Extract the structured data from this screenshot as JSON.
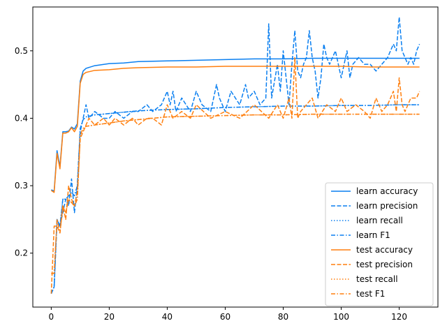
{
  "chart_data": {
    "type": "line",
    "title": "",
    "xlabel": "",
    "ylabel": "",
    "xlim": [
      -6.35,
      133.35
    ],
    "ylim": [
      0.12,
      0.565
    ],
    "xticks": [
      0,
      20,
      40,
      60,
      80,
      100,
      120
    ],
    "yticks": [
      0.2,
      0.3,
      0.4,
      0.5
    ],
    "grid": false,
    "legend_position": "lower-right",
    "colors": {
      "learn": "#1f77b4",
      "test": "#ff7f0e"
    },
    "series": [
      {
        "name": "learn accuracy",
        "color": "#0a7ff0",
        "dash": "solid",
        "x": [
          0,
          1,
          2,
          3,
          4,
          5,
          6,
          7,
          8,
          9,
          10,
          11,
          12,
          15,
          20,
          25,
          30,
          40,
          50,
          60,
          70,
          80,
          90,
          100,
          110,
          120,
          127
        ],
        "y": [
          0.294,
          0.292,
          0.352,
          0.328,
          0.38,
          0.38,
          0.381,
          0.387,
          0.384,
          0.392,
          0.455,
          0.47,
          0.474,
          0.478,
          0.481,
          0.482,
          0.484,
          0.485,
          0.486,
          0.487,
          0.488,
          0.488,
          0.489,
          0.489,
          0.489,
          0.489,
          0.489
        ]
      },
      {
        "name": "learn precision",
        "color": "#0a7ff0",
        "dash": "dashed",
        "x": [
          0,
          1,
          2,
          3,
          4,
          5,
          6,
          7,
          8,
          9,
          10,
          11,
          12,
          13,
          15,
          18,
          20,
          22,
          25,
          28,
          30,
          33,
          35,
          38,
          40,
          41,
          42,
          43,
          45,
          48,
          50,
          52,
          55,
          57,
          58,
          60,
          62,
          65,
          67,
          68,
          70,
          72,
          74,
          75,
          76,
          78,
          79,
          80,
          81,
          82,
          83,
          84,
          85,
          86,
          87,
          88,
          89,
          90,
          91,
          92,
          93,
          94,
          95,
          96,
          98,
          100,
          102,
          103,
          104,
          106,
          108,
          110,
          112,
          114,
          116,
          118,
          119,
          120,
          121,
          122,
          123,
          124,
          125,
          126,
          127
        ],
        "y": [
          0.14,
          0.15,
          0.25,
          0.24,
          0.26,
          0.28,
          0.27,
          0.31,
          0.26,
          0.3,
          0.38,
          0.4,
          0.42,
          0.4,
          0.41,
          0.4,
          0.4,
          0.41,
          0.4,
          0.41,
          0.41,
          0.42,
          0.41,
          0.42,
          0.44,
          0.42,
          0.44,
          0.41,
          0.43,
          0.41,
          0.44,
          0.42,
          0.41,
          0.45,
          0.43,
          0.41,
          0.44,
          0.42,
          0.45,
          0.43,
          0.44,
          0.42,
          0.43,
          0.54,
          0.43,
          0.48,
          0.44,
          0.5,
          0.46,
          0.42,
          0.48,
          0.53,
          0.47,
          0.46,
          0.48,
          0.49,
          0.53,
          0.49,
          0.47,
          0.43,
          0.46,
          0.51,
          0.49,
          0.48,
          0.5,
          0.46,
          0.5,
          0.46,
          0.48,
          0.49,
          0.48,
          0.48,
          0.47,
          0.48,
          0.49,
          0.51,
          0.5,
          0.55,
          0.5,
          0.49,
          0.48,
          0.49,
          0.48,
          0.5,
          0.51
        ]
      },
      {
        "name": "learn recall",
        "color": "#0a7ff0",
        "dash": "dotted",
        "x": [
          0,
          1,
          2,
          3,
          4,
          5,
          6,
          7,
          8,
          9,
          10,
          11,
          12,
          15,
          20,
          25,
          30,
          40,
          50,
          60,
          70,
          80,
          90,
          100,
          110,
          120,
          127
        ],
        "y": [
          0.14,
          0.15,
          0.25,
          0.24,
          0.28,
          0.28,
          0.285,
          0.29,
          0.285,
          0.3,
          0.385,
          0.398,
          0.402,
          0.405,
          0.407,
          0.409,
          0.411,
          0.413,
          0.414,
          0.416,
          0.417,
          0.418,
          0.418,
          0.419,
          0.419,
          0.42,
          0.42
        ]
      },
      {
        "name": "learn F1",
        "color": "#0a7ff0",
        "dash": "dashdot",
        "x": [
          0,
          1,
          2,
          3,
          4,
          5,
          6,
          7,
          8,
          9,
          10,
          11,
          12,
          15,
          20,
          25,
          30,
          40,
          50,
          60,
          70,
          80,
          90,
          100,
          110,
          120,
          127
        ],
        "y": [
          0.14,
          0.15,
          0.25,
          0.24,
          0.28,
          0.28,
          0.285,
          0.29,
          0.285,
          0.3,
          0.385,
          0.398,
          0.402,
          0.405,
          0.407,
          0.409,
          0.411,
          0.413,
          0.414,
          0.416,
          0.417,
          0.418,
          0.418,
          0.419,
          0.419,
          0.42,
          0.42
        ]
      },
      {
        "name": "test accuracy",
        "color": "#ff7f0e",
        "dash": "solid",
        "x": [
          0,
          1,
          2,
          3,
          4,
          5,
          6,
          7,
          8,
          9,
          10,
          11,
          12,
          15,
          20,
          25,
          30,
          40,
          50,
          60,
          70,
          80,
          90,
          100,
          110,
          120,
          127
        ],
        "y": [
          0.293,
          0.29,
          0.348,
          0.325,
          0.378,
          0.378,
          0.38,
          0.386,
          0.38,
          0.388,
          0.452,
          0.465,
          0.468,
          0.471,
          0.472,
          0.474,
          0.475,
          0.476,
          0.476,
          0.477,
          0.477,
          0.477,
          0.477,
          0.477,
          0.476,
          0.476,
          0.476
        ]
      },
      {
        "name": "test precision",
        "color": "#ff7f0e",
        "dash": "dashed",
        "x": [
          0,
          1,
          2,
          3,
          4,
          5,
          6,
          7,
          8,
          9,
          10,
          11,
          12,
          13,
          15,
          18,
          20,
          22,
          25,
          28,
          30,
          33,
          35,
          38,
          40,
          42,
          45,
          48,
          50,
          55,
          60,
          65,
          70,
          75,
          78,
          80,
          82,
          83,
          84,
          85,
          86,
          88,
          90,
          92,
          95,
          98,
          100,
          102,
          105,
          108,
          110,
          112,
          114,
          116,
          118,
          119,
          120,
          121,
          122,
          124,
          126,
          127
        ],
        "y": [
          0.14,
          0.24,
          0.24,
          0.23,
          0.27,
          0.25,
          0.3,
          0.28,
          0.27,
          0.29,
          0.37,
          0.38,
          0.39,
          0.4,
          0.39,
          0.4,
          0.39,
          0.4,
          0.39,
          0.4,
          0.39,
          0.4,
          0.4,
          0.39,
          0.42,
          0.4,
          0.41,
          0.4,
          0.42,
          0.4,
          0.41,
          0.4,
          0.42,
          0.4,
          0.42,
          0.4,
          0.43,
          0.4,
          0.49,
          0.4,
          0.41,
          0.42,
          0.43,
          0.4,
          0.42,
          0.41,
          0.43,
          0.41,
          0.42,
          0.41,
          0.4,
          0.43,
          0.41,
          0.42,
          0.44,
          0.41,
          0.46,
          0.42,
          0.41,
          0.43,
          0.43,
          0.44
        ]
      },
      {
        "name": "test recall",
        "color": "#ff7f0e",
        "dash": "dotted",
        "x": [
          0,
          1,
          2,
          3,
          4,
          5,
          6,
          7,
          8,
          9,
          10,
          11,
          12,
          15,
          20,
          25,
          30,
          40,
          50,
          60,
          70,
          80,
          90,
          100,
          110,
          120,
          127
        ],
        "y": [
          0.17,
          0.17,
          0.25,
          0.23,
          0.27,
          0.26,
          0.28,
          0.275,
          0.27,
          0.28,
          0.375,
          0.385,
          0.388,
          0.39,
          0.393,
          0.396,
          0.398,
          0.402,
          0.403,
          0.404,
          0.405,
          0.405,
          0.406,
          0.406,
          0.406,
          0.406,
          0.406
        ]
      },
      {
        "name": "test F1",
        "color": "#ff7f0e",
        "dash": "dashdot",
        "x": [
          0,
          1,
          2,
          3,
          4,
          5,
          6,
          7,
          8,
          9,
          10,
          11,
          12,
          15,
          20,
          25,
          30,
          40,
          50,
          60,
          70,
          80,
          90,
          100,
          110,
          120,
          127
        ],
        "y": [
          0.17,
          0.17,
          0.25,
          0.23,
          0.27,
          0.26,
          0.28,
          0.275,
          0.27,
          0.28,
          0.375,
          0.385,
          0.388,
          0.39,
          0.393,
          0.396,
          0.398,
          0.402,
          0.403,
          0.404,
          0.405,
          0.405,
          0.406,
          0.406,
          0.406,
          0.406,
          0.406
        ]
      }
    ]
  }
}
